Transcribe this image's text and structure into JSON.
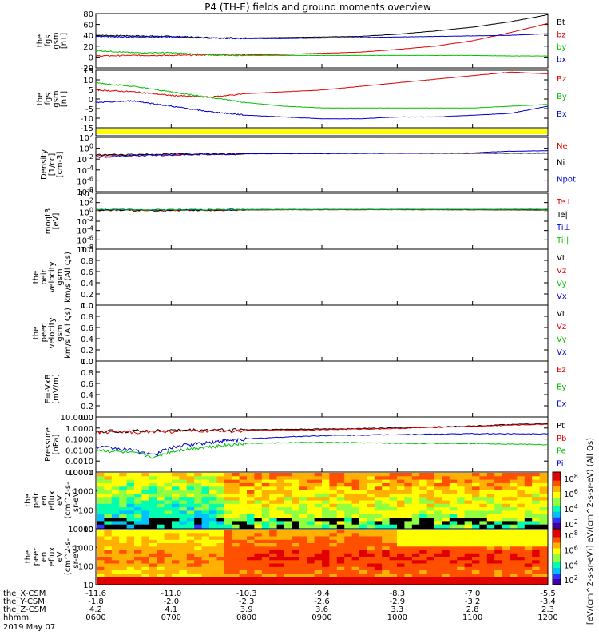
{
  "title": "P4 (TH-E) fields and ground moments overview",
  "colors": {
    "black": "#000000",
    "red": "#e00000",
    "green": "#00c000",
    "blue": "#0000d0",
    "yellow": "#ffff00"
  },
  "chart_data": {
    "type": "line",
    "time_axis": {
      "ticks": [
        "0600",
        "0700",
        "0800",
        "0900",
        "1000",
        "1100",
        "1200"
      ],
      "rows": [
        {
          "label": "the_X-CSM",
          "values": [
            "-11.6",
            "-11.0",
            "-10.3",
            "-9.4",
            "-8.3",
            "-7.0",
            "-5.5"
          ]
        },
        {
          "label": "the_Y-CSM",
          "values": [
            "-1.8",
            "-2.0",
            "-2.3",
            "-2.6",
            "-2.9",
            "-3.2",
            "-3.4"
          ]
        },
        {
          "label": "the_Z-CSM",
          "values": [
            "4.2",
            "4.1",
            "3.9",
            "3.6",
            "3.3",
            "2.8",
            "2.3"
          ]
        },
        {
          "label": "hhmm",
          "values": [
            "0600",
            "0700",
            "0800",
            "0900",
            "1000",
            "1100",
            "1200"
          ]
        }
      ],
      "date": "2019 May 07"
    },
    "panels": [
      {
        "id": "fgs",
        "ylabel": [
          "the",
          "fgs",
          "gsm",
          "[nT]"
        ],
        "ylim": [
          -20,
          80
        ],
        "yticks": [
          "80",
          "60",
          "40",
          "20",
          "0",
          "-20"
        ],
        "legend": [
          {
            "name": "Bt",
            "color": "#000000"
          },
          {
            "name": "bz",
            "color": "#e00000"
          },
          {
            "name": "by",
            "color": "#00c000"
          },
          {
            "name": "bx",
            "color": "#0000d0"
          }
        ],
        "series": [
          {
            "name": "Bt",
            "color": "#000000",
            "x": [
              0,
              0.5,
              1,
              1.5,
              2,
              2.5,
              3,
              3.5,
              4,
              4.5,
              5,
              5.5,
              6
            ],
            "y": [
              40,
              39,
              38,
              36,
              35,
              36,
              37,
              38,
              42,
              48,
              55,
              65,
              78
            ]
          },
          {
            "name": "bz",
            "color": "#e00000",
            "x": [
              0,
              0.5,
              1,
              1.5,
              2,
              2.5,
              3,
              3.5,
              4,
              4.5,
              5,
              5.5,
              6
            ],
            "y": [
              2,
              3,
              3,
              4,
              4,
              5,
              7,
              9,
              14,
              20,
              30,
              45,
              62
            ]
          },
          {
            "name": "by",
            "color": "#00c000",
            "x": [
              0,
              0.5,
              1,
              1.5,
              2,
              2.5,
              3,
              3.5,
              4,
              4.5,
              5,
              5.5,
              6
            ],
            "y": [
              12,
              8,
              8,
              4,
              3,
              3,
              3,
              3,
              3,
              3,
              3,
              2,
              2
            ]
          },
          {
            "name": "bx",
            "color": "#0000d0",
            "x": [
              0,
              0.5,
              1,
              1.5,
              2,
              2.5,
              3,
              3.5,
              4,
              4.5,
              5,
              5.5,
              6
            ],
            "y": [
              38,
              37,
              37,
              35,
              34,
              34,
              35,
              36,
              37,
              38,
              39,
              40,
              43
            ]
          }
        ]
      },
      {
        "id": "fgs_gsm",
        "ylabel": [
          "the",
          "fgs",
          "gsm",
          "[nT]"
        ],
        "ylim": [
          -17,
          15
        ],
        "yticks": [
          "15",
          "10",
          "5",
          "0",
          "-5",
          "-10",
          "-15"
        ],
        "legend": [
          {
            "name": "Bz",
            "color": "#e00000"
          },
          {
            "name": "By",
            "color": "#00c000"
          },
          {
            "name": "Bx",
            "color": "#0000d0"
          }
        ],
        "series": [
          {
            "name": "Bz",
            "color": "#e00000",
            "x": [
              0,
              0.5,
              1,
              1.5,
              2,
              2.5,
              3,
              3.5,
              4,
              4.5,
              5,
              5.5,
              6
            ],
            "y": [
              4,
              3,
              1,
              0,
              2,
              3,
              4,
              6,
              8,
              10,
              12,
              14,
              13
            ]
          },
          {
            "name": "By",
            "color": "#00c000",
            "x": [
              0,
              0.5,
              1,
              1.5,
              2,
              2.5,
              3,
              3.5,
              4,
              4.5,
              5,
              5.5,
              6
            ],
            "y": [
              8,
              6,
              3,
              0,
              -3,
              -5,
              -6,
              -6,
              -6,
              -6,
              -6,
              -5,
              -4
            ]
          },
          {
            "name": "Bx",
            "color": "#0000d0",
            "x": [
              0,
              0.5,
              1,
              1.5,
              2,
              2.5,
              3,
              3.5,
              4,
              4.5,
              5,
              5.5,
              6
            ],
            "y": [
              -3,
              -2,
              -5,
              -8,
              -10,
              -11,
              -12,
              -12,
              -11,
              -11,
              -10,
              -9,
              -5
            ]
          }
        ]
      },
      {
        "id": "state",
        "ylabel": [],
        "yticks": [],
        "legend": []
      },
      {
        "id": "density",
        "ylabel": [
          "Density",
          "[1/cc]",
          "[cm-3]"
        ],
        "log": true,
        "ylim": [
          -8,
          3
        ],
        "yticks": [
          "10^2",
          "10^0",
          "10^-2",
          "10^-4",
          "10^-6",
          "10^-8"
        ],
        "legend": [
          {
            "name": "Ne",
            "color": "#e00000"
          },
          {
            "name": "Ni",
            "color": "#000000"
          },
          {
            "name": "Npot",
            "color": "#0000d0"
          }
        ],
        "series": [
          {
            "name": "Ne",
            "color": "#e00000",
            "x": [
              0,
              1,
              2,
              3,
              4,
              5,
              6
            ],
            "y": [
              0.2,
              0.3,
              0.5,
              0.6,
              0.6,
              0.6,
              0.7
            ]
          },
          {
            "name": "Ni",
            "color": "#000000",
            "x": [
              0,
              1,
              2,
              3,
              4,
              5,
              6
            ],
            "y": [
              0.3,
              0.4,
              0.5,
              0.6,
              0.6,
              0.6,
              0.6
            ]
          },
          {
            "name": "Npot",
            "color": "#0000d0",
            "x": [
              0,
              1,
              2,
              3,
              4,
              5,
              5.5,
              6
            ],
            "y": [
              0.1,
              0.3,
              0.5,
              0.5,
              0.6,
              0.7,
              1.5,
              2
            ]
          }
        ]
      },
      {
        "id": "temp",
        "ylabel": [
          "moqt3",
          "[eV]"
        ],
        "log": true,
        "ylim": [
          -8,
          4
        ],
        "yticks": [
          "10^4",
          "10^2",
          "10^0",
          "10^-2",
          "10^-4",
          "10^-6",
          "10^-8"
        ],
        "legend": [
          {
            "name": "Te⊥",
            "color": "#e00000"
          },
          {
            "name": "Te||",
            "color": "#000000"
          },
          {
            "name": "Ti⊥",
            "color": "#0000d0"
          },
          {
            "name": "Ti||",
            "color": "#00c000"
          }
        ],
        "series": [
          {
            "name": "Te⊥",
            "color": "#e00000",
            "x": [
              0,
              1,
              2,
              3,
              4,
              5,
              6
            ],
            "y": [
              2.5,
              2.0,
              2.7,
              3.0,
              3.0,
              2.8,
              2.5
            ]
          },
          {
            "name": "Te||",
            "color": "#000000",
            "x": [
              0,
              1,
              2,
              3,
              4,
              5,
              6
            ],
            "y": [
              2.6,
              2.1,
              2.8,
              3.1,
              3.1,
              2.9,
              2.7
            ]
          },
          {
            "name": "Ti⊥",
            "color": "#0000d0",
            "x": [
              0,
              1,
              2,
              3,
              4,
              5,
              6
            ],
            "y": [
              3.3,
              3.0,
              3.3,
              3.4,
              3.5,
              3.5,
              3.6
            ]
          },
          {
            "name": "Ti||",
            "color": "#00c000",
            "x": [
              0,
              1,
              2,
              3,
              4,
              5,
              6
            ],
            "y": [
              3.2,
              2.9,
              3.2,
              3.3,
              3.4,
              3.5,
              3.5
            ]
          }
        ]
      },
      {
        "id": "peir_vel",
        "ylabel": [
          "the",
          "peir",
          "velocity",
          "gsm",
          "km/s (All Qs)"
        ],
        "ylim": [
          0,
          1
        ],
        "yticks": [
          "1.0",
          "0.8",
          "0.6",
          "0.4",
          "0.2",
          "0.0"
        ],
        "legend": [
          {
            "name": "Vt",
            "color": "#000000"
          },
          {
            "name": "Vz",
            "color": "#e00000"
          },
          {
            "name": "Vy",
            "color": "#00c000"
          },
          {
            "name": "Vx",
            "color": "#0000d0"
          }
        ],
        "series": []
      },
      {
        "id": "peer_vel",
        "ylabel": [
          "the",
          "peer",
          "velocity",
          "gsm",
          "km/s (All Qs)"
        ],
        "ylim": [
          0,
          1
        ],
        "yticks": [
          "1.0",
          "0.8",
          "0.6",
          "0.4",
          "0.2",
          "0.0"
        ],
        "legend": [
          {
            "name": "Vt",
            "color": "#000000"
          },
          {
            "name": "Vz",
            "color": "#e00000"
          },
          {
            "name": "Vy",
            "color": "#00c000"
          },
          {
            "name": "Vx",
            "color": "#0000d0"
          }
        ],
        "series": []
      },
      {
        "id": "efield",
        "ylabel": [
          "E=-VxB",
          "[mV/m]"
        ],
        "ylim": [
          0,
          1
        ],
        "yticks": [
          "1.0",
          "0.8",
          "0.6",
          "0.4",
          "0.2",
          "0.0"
        ],
        "legend": [
          {
            "name": "Ez",
            "color": "#e00000"
          },
          {
            "name": "Ey",
            "color": "#00c000"
          },
          {
            "name": "Ex",
            "color": "#0000d0"
          }
        ],
        "series": []
      },
      {
        "id": "pressure",
        "ylabel": [
          "Pressure",
          "[nPa]"
        ],
        "log": true,
        "ylim": [
          -4,
          1
        ],
        "yticks": [
          "10.0000",
          "1.0000",
          "0.1000",
          "0.0100",
          "0.0010",
          "0.0001"
        ],
        "legend": [
          {
            "name": "Pt",
            "color": "#000000"
          },
          {
            "name": "Pb",
            "color": "#e00000"
          },
          {
            "name": "Pe",
            "color": "#00c000"
          },
          {
            "name": "Pi",
            "color": "#0000d0"
          }
        ],
        "series": [
          {
            "name": "Pt",
            "color": "#000000",
            "x": [
              0,
              1,
              2,
              3,
              4,
              5,
              6
            ],
            "y": [
              0.5,
              0.6,
              0.7,
              0.8,
              1.0,
              1.5,
              2.5
            ]
          },
          {
            "name": "Pb",
            "color": "#e00000",
            "x": [
              0,
              1,
              2,
              3,
              4,
              5,
              6
            ],
            "y": [
              0.4,
              0.5,
              0.6,
              0.7,
              0.9,
              1.4,
              2.2
            ]
          },
          {
            "name": "Pe",
            "color": "#00c000",
            "x": [
              0,
              0.8,
              1.5,
              2,
              3,
              4,
              5,
              6
            ],
            "y": [
              0.01,
              0.002,
              0.02,
              0.04,
              0.05,
              0.04,
              0.04,
              0.03
            ]
          },
          {
            "name": "Pi",
            "color": "#0000d0",
            "x": [
              0,
              0.8,
              1.5,
              2,
              3,
              4,
              5,
              6
            ],
            "y": [
              0.02,
              0.003,
              0.05,
              0.1,
              0.2,
              0.25,
              0.3,
              0.3
            ]
          }
        ]
      },
      {
        "id": "peir_eflux",
        "ylabel": [
          "the",
          "peir",
          "en",
          "eflux",
          "eV",
          "(cm^2-s-",
          "sr-eV)"
        ],
        "type": "heatmap",
        "yticks": [
          "10000",
          "1000",
          "100",
          "10"
        ],
        "colorbar": [
          "10^8",
          "10^6",
          "10^4",
          "10^2"
        ],
        "legend": []
      },
      {
        "id": "peer_eflux",
        "ylabel": [
          "the",
          "peer",
          "en",
          "eflux",
          "eV",
          "(cm^2-s-",
          "sr-eV)"
        ],
        "type": "heatmap",
        "yticks": [
          "10000",
          "1000",
          "100",
          "10"
        ],
        "colorbar": [
          "10^8",
          "10^6",
          "10^4",
          "10^2"
        ],
        "legend": []
      }
    ],
    "colorbar_label": "[eV/(cm^2-s-sr-eV)] eV/(cm^2-s-sr-eV) (All Qs)"
  }
}
